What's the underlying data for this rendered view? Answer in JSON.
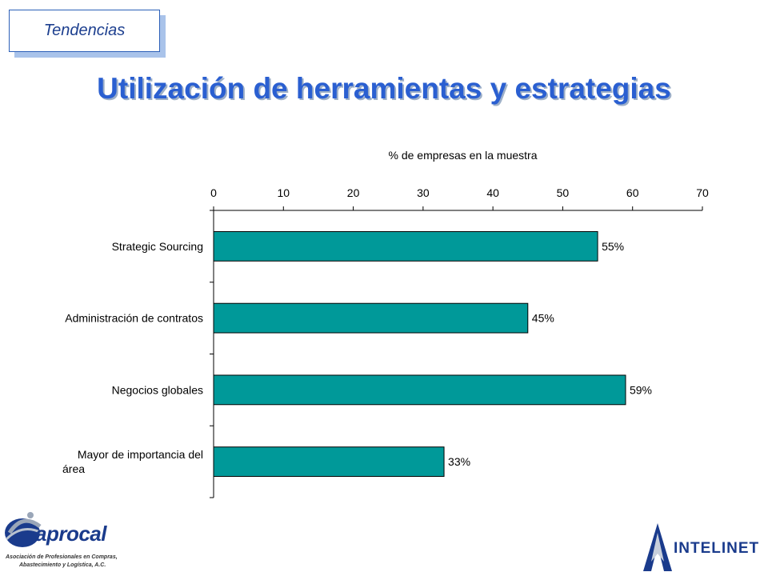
{
  "header": {
    "tag_label": "Tendencias",
    "title": "Utilización de herramientas y estrategias"
  },
  "chart_data": {
    "type": "bar",
    "orientation": "horizontal",
    "title": "",
    "xlabel": "% de empresas en la muestra",
    "xlabel_position": "top",
    "ylabel": "",
    "xlim": [
      0,
      70
    ],
    "xticks": [
      0,
      10,
      20,
      30,
      40,
      50,
      60,
      70
    ],
    "categories": [
      "Strategic Sourcing",
      "Administración de contratos",
      "Negocios globales",
      "Mayor de importancia del área"
    ],
    "category_lines": [
      [
        "Strategic Sourcing"
      ],
      [
        "Administración de contratos"
      ],
      [
        "Negocios globales"
      ],
      [
        "Mayor de importancia del",
        "área"
      ]
    ],
    "values": [
      55,
      45,
      59,
      33
    ],
    "data_labels": [
      "55%",
      "45%",
      "59%",
      "33%"
    ],
    "bar_color": "#009999",
    "grid": false,
    "legend": "none"
  },
  "branding": {
    "left_logo_name": "aprocal",
    "left_logo_sub_1": "Asociación de Profesionales en Compras,",
    "left_logo_sub_2": "Abastecimiento y Logística, A.C.",
    "right_logo_name": "INTELINET",
    "logo_blue": "#1a3b8c"
  }
}
